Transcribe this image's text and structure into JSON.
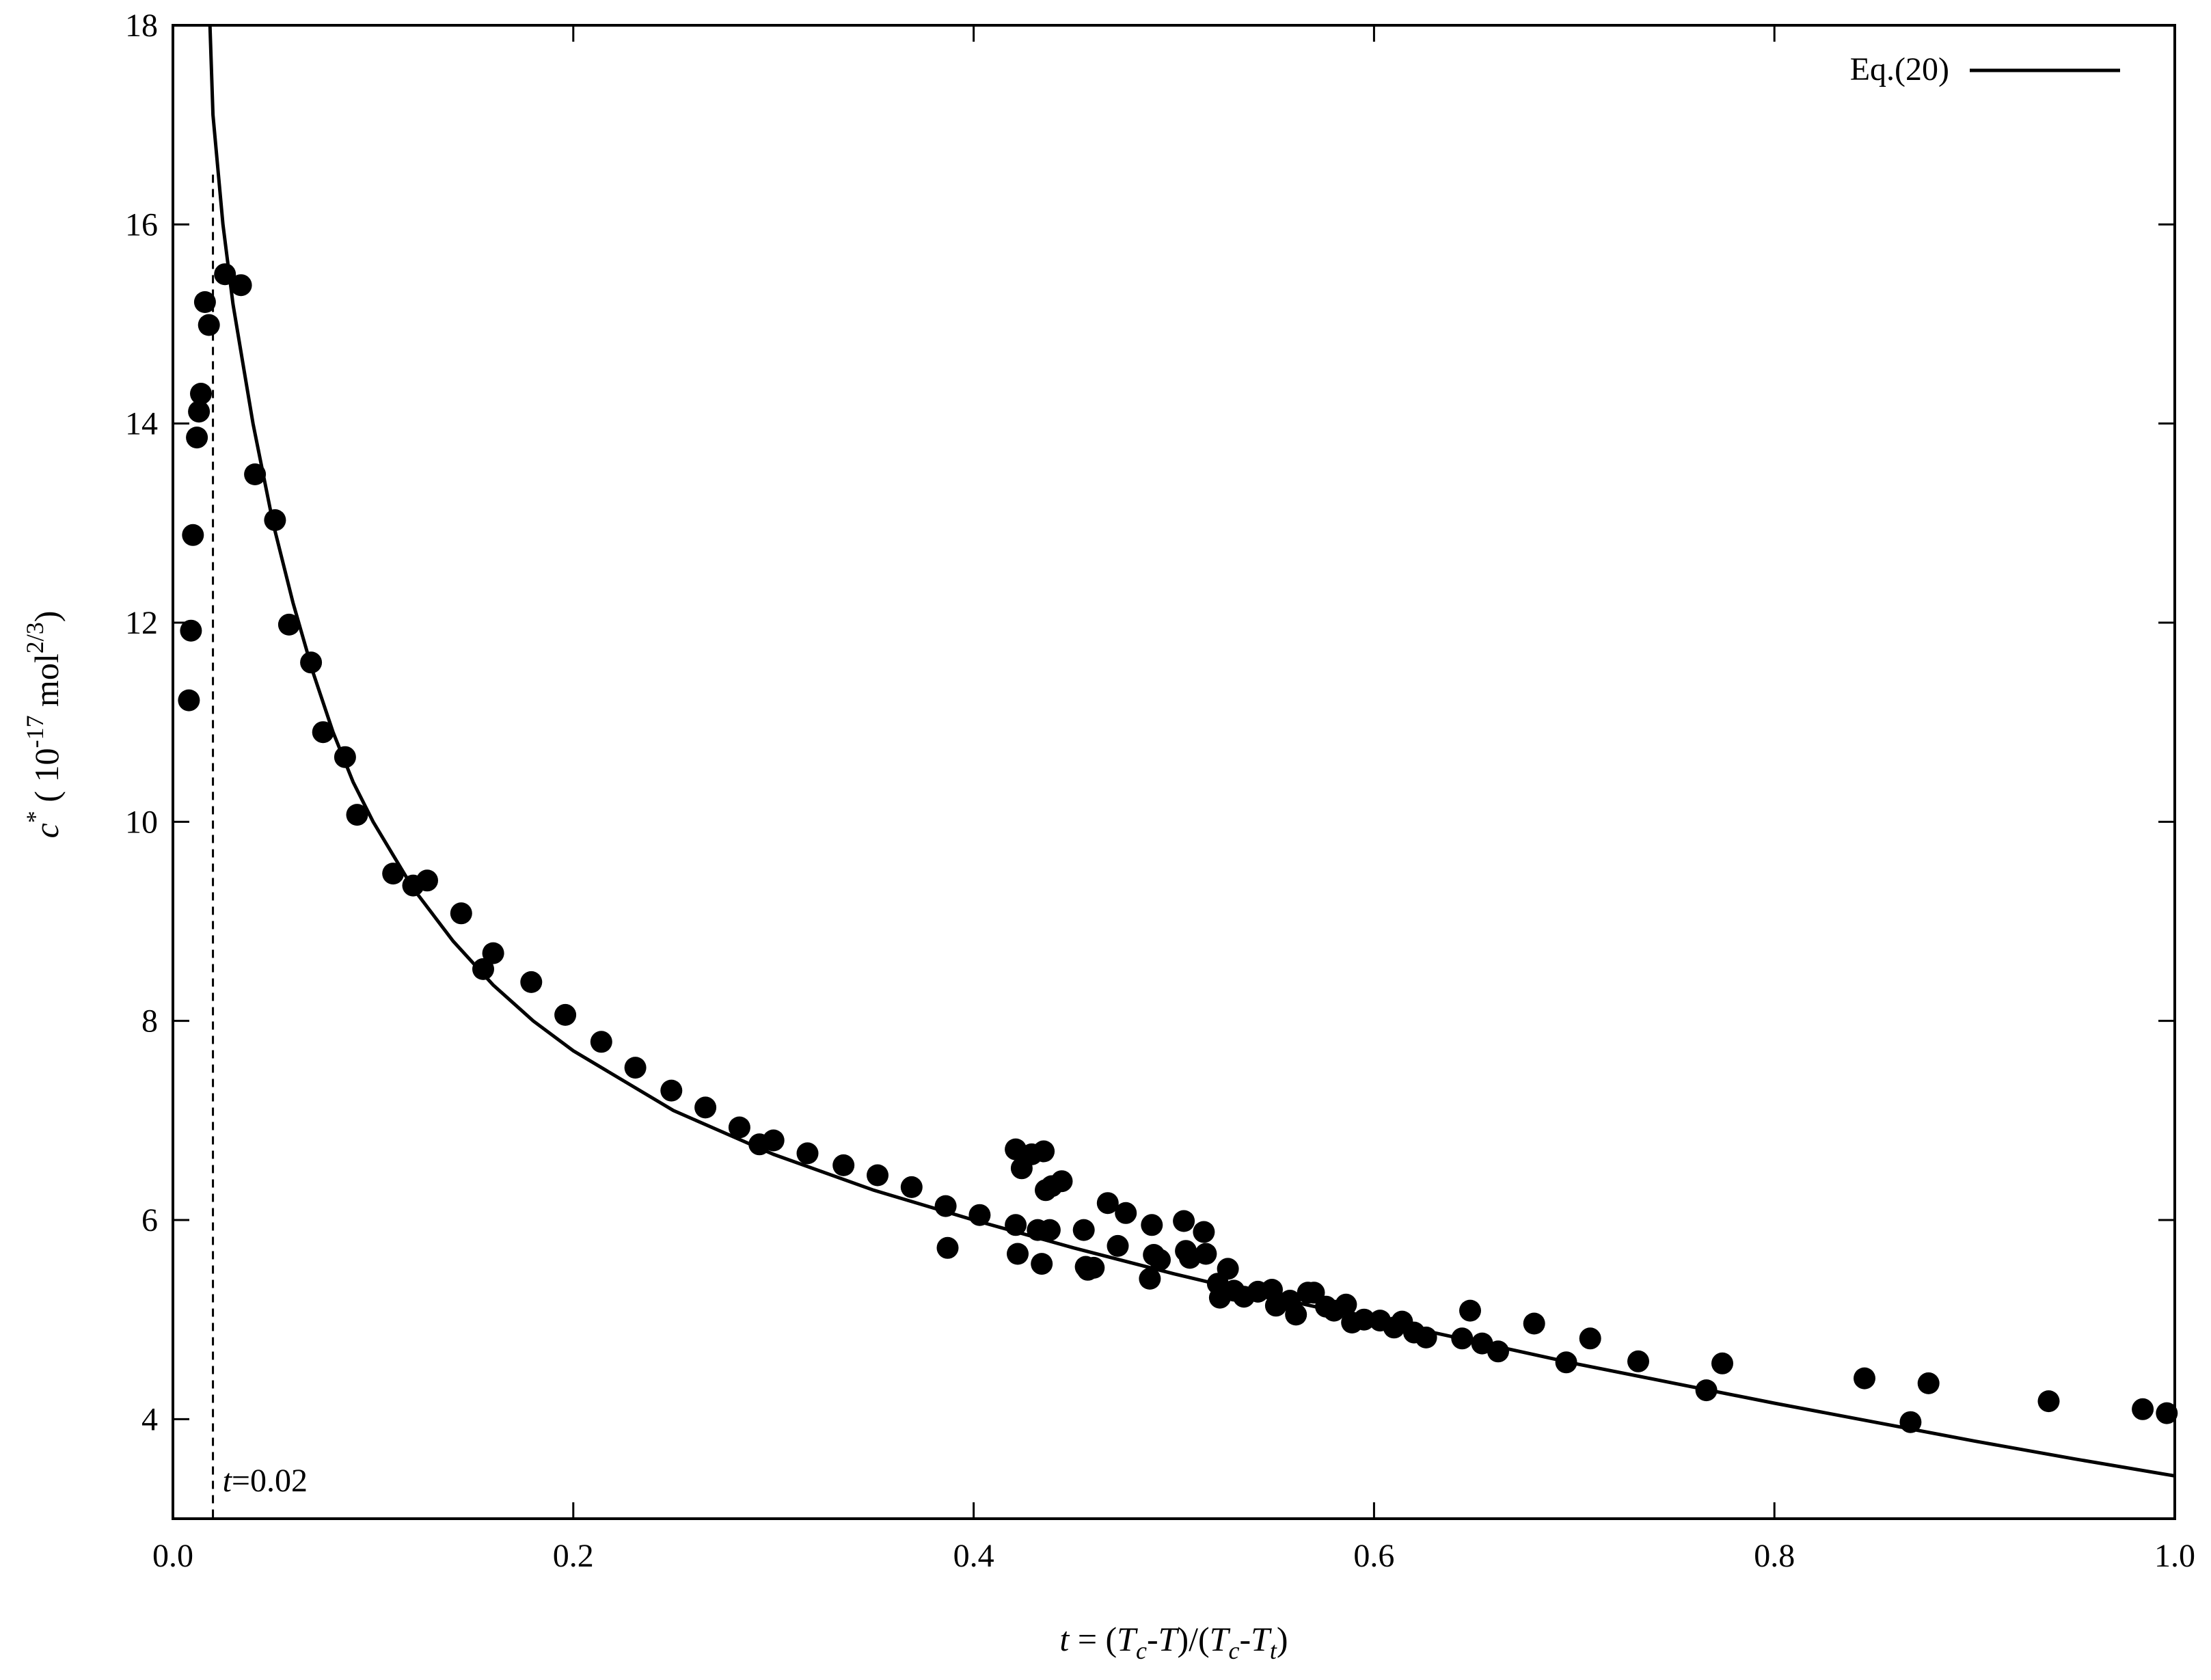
{
  "chart_data": {
    "type": "scatter",
    "title": "",
    "xlabel": {
      "t": "t",
      "eq": " = (",
      "Tc1_base": "T",
      "Tc1_sub": "c",
      "mid": "-",
      "T1": "T",
      "div": ")/(",
      "Tc2_base": "T",
      "Tc2_sub": "c",
      "dash": "-",
      "Tt_base": "T",
      "Tt_sub": "t",
      "close": ")"
    },
    "ylabel": {
      "c": "c",
      "star": "*",
      "open": " ( 10",
      "exp": "-17",
      "mol": " mol",
      "mol_exp": "2/3",
      "close": ")"
    },
    "xlim": [
      0.0,
      1.0
    ],
    "ylim": [
      3,
      18
    ],
    "x_ticks": [
      0.0,
      0.2,
      0.4,
      0.6,
      0.8,
      1.0
    ],
    "x_tick_labels": [
      "0.0",
      "0.2",
      "0.4",
      "0.6",
      "0.8",
      "1.0"
    ],
    "y_ticks": [
      4,
      6,
      8,
      10,
      12,
      14,
      16,
      18
    ],
    "y_tick_labels": [
      "4",
      "6",
      "8",
      "10",
      "12",
      "14",
      "16",
      "18"
    ],
    "grid": false,
    "legend": {
      "position": "top-right",
      "label": "Eq.(20)"
    },
    "annotation": {
      "italic": "t",
      "text": "=0.02",
      "x": 0.02
    },
    "vline": {
      "x": 0.02,
      "ymax": 16.5,
      "style": "dashed"
    },
    "fit_curve": {
      "name": "Eq.(20)",
      "x": [
        0.0185,
        0.02,
        0.025,
        0.03,
        0.035,
        0.04,
        0.05,
        0.06,
        0.07,
        0.08,
        0.09,
        0.1,
        0.12,
        0.14,
        0.16,
        0.18,
        0.2,
        0.25,
        0.3,
        0.35,
        0.4,
        0.45,
        0.5,
        0.55,
        0.6,
        0.65,
        0.7,
        0.75,
        0.8,
        0.85,
        0.9,
        0.95,
        1.0
      ],
      "y": [
        18.0,
        17.1,
        16.0,
        15.2,
        14.6,
        14.0,
        13.0,
        12.2,
        11.5,
        10.9,
        10.4,
        10.0,
        9.33,
        8.8,
        8.36,
        8.0,
        7.7,
        7.1,
        6.66,
        6.3,
        6.0,
        5.72,
        5.46,
        5.22,
        5.0,
        4.78,
        4.56,
        4.36,
        4.16,
        3.97,
        3.78,
        3.6,
        3.43
      ]
    },
    "points": {
      "x": [
        0.008,
        0.009,
        0.01,
        0.012,
        0.013,
        0.014,
        0.016,
        0.018,
        0.026,
        0.034,
        0.041,
        0.051,
        0.058,
        0.069,
        0.075,
        0.086,
        0.092,
        0.11,
        0.12,
        0.127,
        0.144,
        0.155,
        0.16,
        0.179,
        0.196,
        0.214,
        0.231,
        0.249,
        0.266,
        0.283,
        0.293,
        0.3,
        0.317,
        0.335,
        0.352,
        0.369,
        0.386,
        0.387,
        0.403,
        0.421,
        0.421,
        0.422,
        0.424,
        0.429,
        0.432,
        0.434,
        0.435,
        0.436,
        0.438,
        0.439,
        0.444,
        0.455,
        0.456,
        0.457,
        0.46,
        0.467,
        0.472,
        0.476,
        0.488,
        0.489,
        0.49,
        0.493,
        0.505,
        0.506,
        0.508,
        0.515,
        0.516,
        0.522,
        0.523,
        0.527,
        0.53,
        0.535,
        0.542,
        0.549,
        0.551,
        0.558,
        0.561,
        0.567,
        0.57,
        0.576,
        0.58,
        0.586,
        0.589,
        0.595,
        0.603,
        0.61,
        0.614,
        0.62,
        0.626,
        0.644,
        0.648,
        0.654,
        0.662,
        0.68,
        0.696,
        0.708,
        0.732,
        0.766,
        0.774,
        0.845,
        0.868,
        0.877,
        0.937,
        0.984,
        0.996
      ],
      "y": [
        11.22,
        11.92,
        12.88,
        13.86,
        14.12,
        14.3,
        15.22,
        14.99,
        15.5,
        15.39,
        13.49,
        13.03,
        11.98,
        11.6,
        10.9,
        10.65,
        10.07,
        9.48,
        9.36,
        9.41,
        9.08,
        8.52,
        8.68,
        8.39,
        8.06,
        7.79,
        7.53,
        7.3,
        7.13,
        6.93,
        6.76,
        6.8,
        6.67,
        6.55,
        6.45,
        6.33,
        6.14,
        5.72,
        6.05,
        6.71,
        5.95,
        5.66,
        6.52,
        6.66,
        5.9,
        5.56,
        6.69,
        6.3,
        5.9,
        6.34,
        6.39,
        5.9,
        5.53,
        5.5,
        5.52,
        6.17,
        5.74,
        6.07,
        5.41,
        5.95,
        5.65,
        5.6,
        5.99,
        5.69,
        5.62,
        5.88,
        5.66,
        5.36,
        5.22,
        5.51,
        5.29,
        5.23,
        5.28,
        5.3,
        5.14,
        5.19,
        5.05,
        5.27,
        5.27,
        5.13,
        5.09,
        5.15,
        4.97,
        5.0,
        4.99,
        4.92,
        4.98,
        4.87,
        4.82,
        4.81,
        5.09,
        4.76,
        4.68,
        4.96,
        4.57,
        4.81,
        4.58,
        4.29,
        4.56,
        4.41,
        3.97,
        4.36,
        4.18,
        4.1,
        4.06
      ]
    }
  }
}
